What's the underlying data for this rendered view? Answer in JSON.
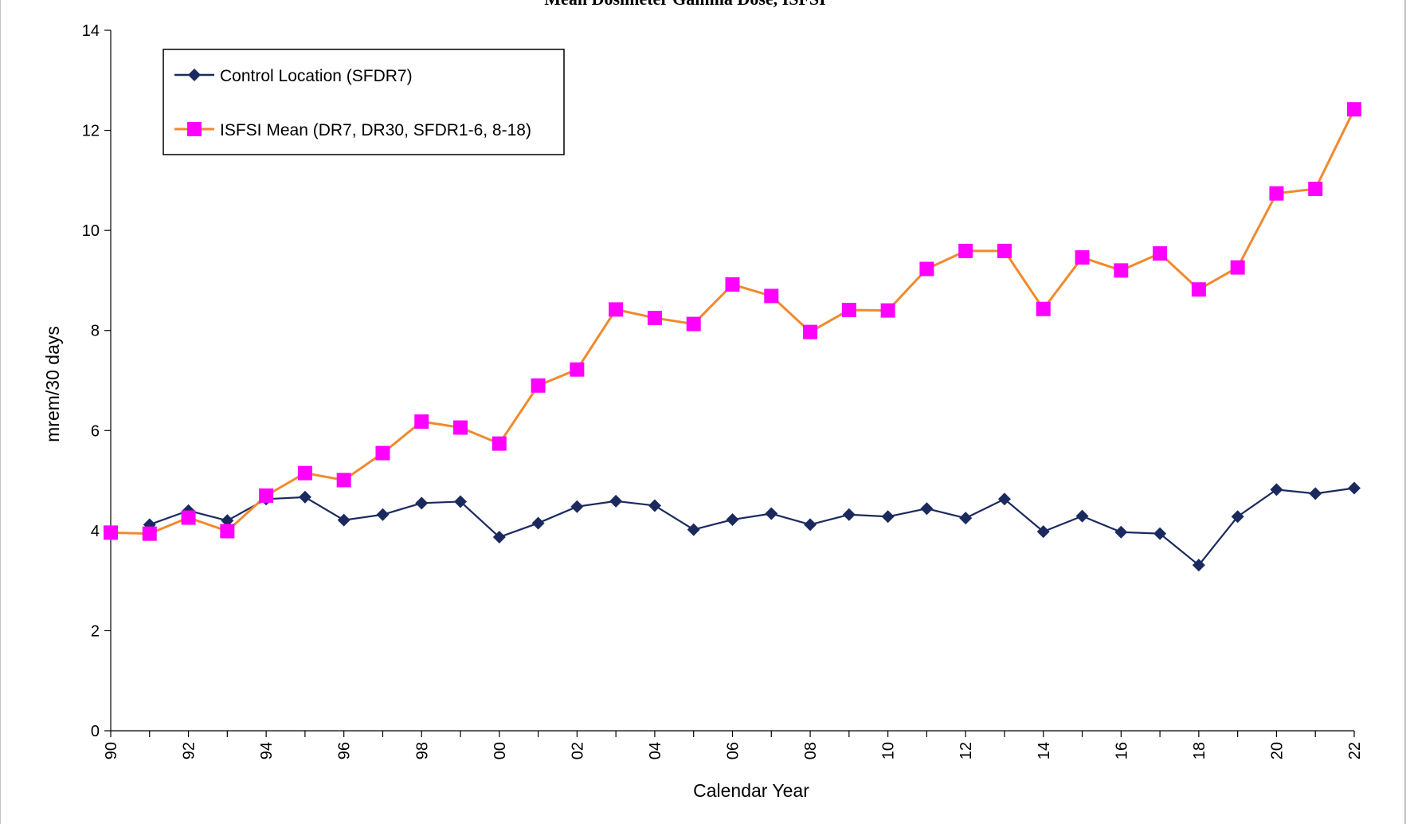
{
  "chart_data": {
    "type": "line",
    "title": "Mean Dosimeter Gamma Dose, ISFSI",
    "xlabel": "Calendar Year",
    "ylabel": "mrem/30 days",
    "ylim": [
      0,
      14
    ],
    "yticks": [
      "0",
      "2",
      "4",
      "6",
      "8",
      "10",
      "12",
      "14"
    ],
    "categories": [
      "90",
      "91",
      "92",
      "93",
      "94",
      "95",
      "96",
      "97",
      "98",
      "99",
      "00",
      "01",
      "02",
      "03",
      "04",
      "05",
      "06",
      "07",
      "08",
      "09",
      "10",
      "11",
      "12",
      "13",
      "14",
      "15",
      "16",
      "17",
      "18",
      "19",
      "20",
      "21",
      "22"
    ],
    "tick_labels": [
      "90",
      "92",
      "94",
      "96",
      "98",
      "00",
      "02",
      "04",
      "06",
      "08",
      "10",
      "12",
      "14",
      "16",
      "18",
      "20",
      "22"
    ],
    "grid": false,
    "legend_position": "top-left",
    "series": [
      {
        "name": "Control Location (SFDR7)",
        "color": "#1b2a5e",
        "marker": "diamond",
        "values": [
          null,
          4.12,
          4.4,
          4.2,
          4.63,
          4.67,
          4.21,
          4.32,
          4.55,
          4.58,
          3.87,
          4.15,
          4.48,
          4.59,
          4.5,
          4.02,
          4.22,
          4.34,
          4.12,
          4.32,
          4.28,
          4.44,
          4.25,
          4.63,
          3.98,
          4.29,
          3.97,
          3.94,
          3.31,
          4.28,
          4.82,
          4.74,
          4.85
        ]
      },
      {
        "name": "ISFSI Mean (DR7, DR30, SFDR1-6, 8-18)",
        "color": "#f08a2e",
        "marker_color": "#ff00ff",
        "marker": "square",
        "values": [
          3.96,
          3.94,
          4.26,
          3.99,
          4.7,
          5.15,
          5.01,
          5.55,
          6.18,
          6.06,
          5.74,
          6.9,
          7.22,
          8.42,
          8.25,
          8.13,
          8.92,
          8.69,
          7.97,
          8.41,
          8.4,
          9.23,
          9.59,
          9.59,
          8.43,
          9.46,
          9.2,
          9.54,
          8.82,
          9.26,
          10.74,
          10.83,
          12.42
        ]
      }
    ]
  }
}
